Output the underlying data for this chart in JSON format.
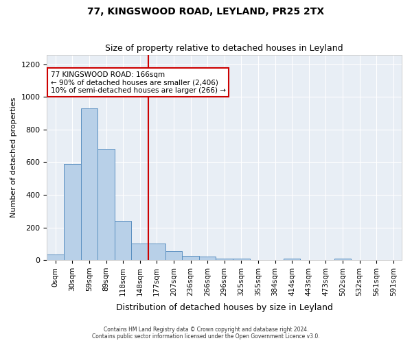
{
  "title1": "77, KINGSWOOD ROAD, LEYLAND, PR25 2TX",
  "title2": "Size of property relative to detached houses in Leyland",
  "xlabel": "Distribution of detached houses by size in Leyland",
  "ylabel": "Number of detached properties",
  "footer1": "Contains HM Land Registry data © Crown copyright and database right 2024.",
  "footer2": "Contains public sector information licensed under the Open Government Licence v3.0.",
  "bar_labels": [
    "0sqm",
    "30sqm",
    "59sqm",
    "89sqm",
    "118sqm",
    "148sqm",
    "177sqm",
    "207sqm",
    "236sqm",
    "266sqm",
    "296sqm",
    "325sqm",
    "355sqm",
    "384sqm",
    "414sqm",
    "443sqm",
    "473sqm",
    "502sqm",
    "532sqm",
    "561sqm",
    "591sqm"
  ],
  "bar_values": [
    35,
    590,
    930,
    680,
    240,
    100,
    100,
    55,
    25,
    20,
    10,
    10,
    0,
    0,
    10,
    0,
    0,
    10,
    0,
    0,
    0
  ],
  "bar_color": "#b8d0e8",
  "bar_edge_color": "#5a8fc0",
  "background_color": "#e8eef5",
  "vline_x": 6,
  "vline_color": "#cc0000",
  "annotation_text": "77 KINGSWOOD ROAD: 166sqm\n← 90% of detached houses are smaller (2,406)\n10% of semi-detached houses are larger (266) →",
  "annotation_box_color": "#ffffff",
  "annotation_box_edge": "#cc0000",
  "ylim": [
    0,
    1260
  ],
  "yticks": [
    0,
    200,
    400,
    600,
    800,
    1000,
    1200
  ]
}
